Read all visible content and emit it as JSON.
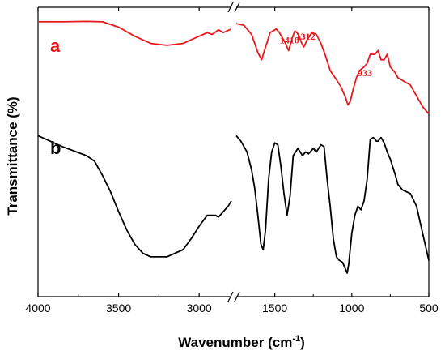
{
  "chart_data": {
    "type": "line",
    "title": "",
    "xlabel": "Wavenumber (cm",
    "xlabel_sup": "-1",
    "xlabel_end": ")",
    "ylabel": "Transmittance (%)",
    "xlim": [
      4000,
      500
    ],
    "x_axis_break": [
      2800,
      1750
    ],
    "x_ticks": [
      {
        "value": 4000,
        "label": "4000"
      },
      {
        "value": 3500,
        "label": "3500"
      },
      {
        "value": 3000,
        "label": "3000"
      },
      {
        "value": 1500,
        "label": "1500"
      },
      {
        "value": 1000,
        "label": "1000"
      },
      {
        "value": 500,
        "label": "500"
      }
    ],
    "y_ticks": false,
    "grid": false,
    "legend": false,
    "series": [
      {
        "label": "a",
        "color": "#e8191c",
        "segments": [
          [
            [
              4000,
              82
            ],
            [
              3850,
              82
            ],
            [
              3700,
              82.2
            ],
            [
              3600,
              82
            ],
            [
              3500,
              79
            ],
            [
              3400,
              74
            ],
            [
              3300,
              70
            ],
            [
              3200,
              69
            ],
            [
              3100,
              70
            ],
            [
              3000,
              74
            ],
            [
              2950,
              76
            ],
            [
              2920,
              75
            ],
            [
              2880,
              77.5
            ],
            [
              2850,
              76
            ],
            [
              2800,
              78
            ]
          ],
          [
            [
              1750,
              81
            ],
            [
              1700,
              80
            ],
            [
              1650,
              75
            ],
            [
              1610,
              65
            ],
            [
              1585,
              61
            ],
            [
              1560,
              68
            ],
            [
              1530,
              76
            ],
            [
              1490,
              78
            ],
            [
              1470,
              76
            ],
            [
              1430,
              70
            ],
            [
              1410,
              66
            ],
            [
              1390,
              72
            ],
            [
              1370,
              77
            ],
            [
              1345,
              75
            ],
            [
              1330,
              71
            ],
            [
              1312,
              68
            ],
            [
              1290,
              72
            ],
            [
              1260,
              76
            ],
            [
              1230,
              75
            ],
            [
              1200,
              70
            ],
            [
              1170,
              63
            ],
            [
              1140,
              55
            ],
            [
              1100,
              50
            ],
            [
              1070,
              46
            ],
            [
              1040,
              40
            ],
            [
              1025,
              36
            ],
            [
              1010,
              38
            ],
            [
              990,
              45
            ],
            [
              970,
              51
            ],
            [
              950,
              55
            ],
            [
              920,
              57
            ],
            [
              900,
              59
            ],
            [
              880,
              64
            ],
            [
              860,
              64
            ],
            [
              850,
              64
            ],
            [
              830,
              66
            ],
            [
              810,
              61
            ],
            [
              790,
              61
            ],
            [
              770,
              64
            ],
            [
              750,
              57
            ],
            [
              720,
              54
            ],
            [
              700,
              51
            ],
            [
              660,
              49
            ],
            [
              620,
              47
            ],
            [
              580,
              41
            ],
            [
              540,
              35
            ],
            [
              500,
              31
            ]
          ]
        ]
      },
      {
        "label": "b",
        "color": "#000000",
        "segments": [
          [
            [
              4000,
              19
            ],
            [
              3850,
              13
            ],
            [
              3700,
              8
            ],
            [
              3650,
              5
            ],
            [
              3600,
              -3
            ],
            [
              3550,
              -12
            ],
            [
              3500,
              -23
            ],
            [
              3450,
              -33
            ],
            [
              3400,
              -41
            ],
            [
              3350,
              -46
            ],
            [
              3300,
              -48
            ],
            [
              3200,
              -48
            ],
            [
              3100,
              -44
            ],
            [
              3050,
              -38
            ],
            [
              3000,
              -31
            ],
            [
              2950,
              -25
            ],
            [
              2900,
              -25
            ],
            [
              2880,
              -26
            ],
            [
              2850,
              -23
            ],
            [
              2820,
              -20
            ],
            [
              2800,
              -17
            ]
          ],
          [
            [
              1750,
              19
            ],
            [
              1720,
              16
            ],
            [
              1680,
              10
            ],
            [
              1650,
              0
            ],
            [
              1630,
              -10
            ],
            [
              1610,
              -25
            ],
            [
              1590,
              -41
            ],
            [
              1575,
              -44
            ],
            [
              1560,
              -33
            ],
            [
              1540,
              -5
            ],
            [
              1520,
              10
            ],
            [
              1500,
              15
            ],
            [
              1480,
              14
            ],
            [
              1460,
              2
            ],
            [
              1440,
              -13
            ],
            [
              1420,
              -25
            ],
            [
              1400,
              -14
            ],
            [
              1380,
              8
            ],
            [
              1350,
              12
            ],
            [
              1320,
              8
            ],
            [
              1300,
              10
            ],
            [
              1280,
              9
            ],
            [
              1250,
              12
            ],
            [
              1230,
              10
            ],
            [
              1200,
              14
            ],
            [
              1180,
              13
            ],
            [
              1160,
              -5
            ],
            [
              1140,
              -20
            ],
            [
              1120,
              -38
            ],
            [
              1100,
              -48
            ],
            [
              1080,
              -50
            ],
            [
              1060,
              -51
            ],
            [
              1040,
              -55
            ],
            [
              1030,
              -57
            ],
            [
              1020,
              -52
            ],
            [
              1000,
              -35
            ],
            [
              980,
              -25
            ],
            [
              960,
              -20
            ],
            [
              940,
              -22
            ],
            [
              920,
              -17
            ],
            [
              900,
              -5
            ],
            [
              880,
              17
            ],
            [
              860,
              18
            ],
            [
              840,
              16
            ],
            [
              830,
              16
            ],
            [
              810,
              18
            ],
            [
              790,
              15
            ],
            [
              770,
              10
            ],
            [
              750,
              6
            ],
            [
              720,
              -2
            ],
            [
              700,
              -8
            ],
            [
              670,
              -11
            ],
            [
              620,
              -13
            ],
            [
              580,
              -20
            ],
            [
              540,
              -35
            ],
            [
              500,
              -50
            ]
          ]
        ]
      }
    ],
    "annotations": [
      {
        "text": "1410",
        "x": 1405,
        "y": 70
      },
      {
        "text": "1312",
        "x": 1300,
        "y": 72
      },
      {
        "text": "933",
        "x": 915,
        "y": 52
      }
    ],
    "series_labels": [
      {
        "text": "a",
        "color": "#e8191c"
      },
      {
        "text": "b",
        "color": "#000000"
      }
    ]
  }
}
